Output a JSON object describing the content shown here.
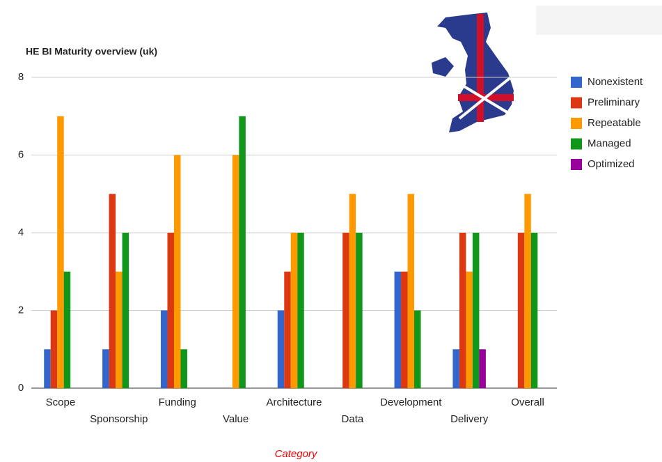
{
  "chart_data": {
    "type": "bar",
    "title": "HE BI Maturity overview (uk)",
    "x_label": "Category",
    "categories": [
      "Scope",
      "Sponsorship",
      "Funding",
      "Value",
      "Architecture",
      "Data",
      "Development",
      "Delivery",
      "Overall"
    ],
    "series": [
      {
        "name": "Nonexistent",
        "color": "#3366cc",
        "values": [
          1,
          1,
          2,
          0,
          2,
          0,
          3,
          1,
          0
        ]
      },
      {
        "name": "Preliminary",
        "color": "#dc3912",
        "values": [
          2,
          5,
          4,
          0,
          3,
          4,
          3,
          4,
          4
        ]
      },
      {
        "name": "Repeatable",
        "color": "#ff9900",
        "values": [
          7,
          3,
          6,
          6,
          4,
          5,
          5,
          3,
          5
        ]
      },
      {
        "name": "Managed",
        "color": "#109618",
        "values": [
          3,
          4,
          1,
          7,
          4,
          4,
          2,
          4,
          4
        ]
      },
      {
        "name": "Optimized",
        "color": "#990099",
        "values": [
          0,
          0,
          0,
          0,
          0,
          0,
          0,
          1,
          0
        ]
      }
    ],
    "ylim": [
      0,
      8
    ],
    "yticks": [
      0,
      2,
      4,
      6,
      8
    ],
    "grid": true,
    "legend": "right"
  }
}
